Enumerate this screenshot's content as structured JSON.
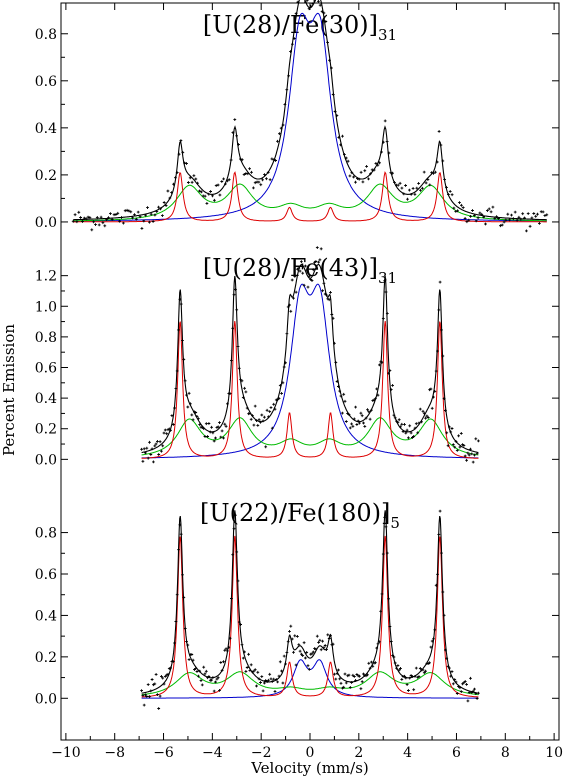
{
  "chart_data": {
    "type": "line",
    "xlabel": "Velocity (mm/s)",
    "ylabel": "Percent Emission",
    "x_ticks": [
      -10,
      -8,
      -6,
      -4,
      -2,
      0,
      2,
      4,
      6,
      8,
      10
    ],
    "xlim": [
      -10.2,
      10.2
    ],
    "colors": {
      "total": "#000000",
      "sextet_a": "#dd0000",
      "sextet_b": "#00bb00",
      "doublet": "#0000cc",
      "data": "#000000"
    },
    "panels": [
      {
        "title_main": "[U(28)/Fe(30)]",
        "title_sub": "31",
        "ylim": [
          -0.03,
          0.85
        ],
        "y_ticks": [
          "0.0",
          "0.2",
          "0.4",
          "0.6",
          "0.8"
        ],
        "data_x_range": [
          -9.7,
          9.7
        ],
        "sextet_a": {
          "amp": 0.21,
          "amp_inner": 0.06,
          "width": 0.14
        },
        "sextet_b": {
          "amp": 0.14,
          "amp_inner": 0.05,
          "width": 0.65
        },
        "doublet": {
          "amp": 0.67,
          "centers": [
            -0.42,
            0.42
          ],
          "width": 0.55
        },
        "noise": 0.022
      },
      {
        "title_main": "[U(28)/Fe(43)]",
        "title_sub": "31",
        "ylim": [
          -0.05,
          1.25
        ],
        "y_ticks": [
          "0.0",
          "0.2",
          "0.4",
          "0.6",
          "0.8",
          "1.0",
          "1.2"
        ],
        "data_x_range": [
          -6.9,
          6.9
        ],
        "sextet_a": {
          "amp": 0.9,
          "amp_inner": 0.3,
          "width": 0.12
        },
        "sextet_b": {
          "amp": 0.24,
          "amp_inner": 0.09,
          "width": 0.6
        },
        "doublet": {
          "amp": 0.88,
          "centers": [
            -0.4,
            0.4
          ],
          "width": 0.5
        },
        "noise": 0.05
      },
      {
        "title_main": "[U(22)/Fe(180)]",
        "title_sub": "5",
        "ylim": [
          -0.1,
          0.88
        ],
        "y_ticks": [
          "0.0",
          "0.2",
          "0.4",
          "0.6",
          "0.8"
        ],
        "data_x_range": [
          -6.9,
          6.9
        ],
        "sextet_a": {
          "amp": 0.78,
          "amp_inner": 0.17,
          "width": 0.13
        },
        "sextet_b": {
          "amp": 0.11,
          "amp_inner": 0.03,
          "width": 0.7
        },
        "doublet": {
          "amp": 0.16,
          "centers": [
            -0.4,
            0.4
          ],
          "width": 0.35
        },
        "noise": 0.03
      }
    ]
  }
}
